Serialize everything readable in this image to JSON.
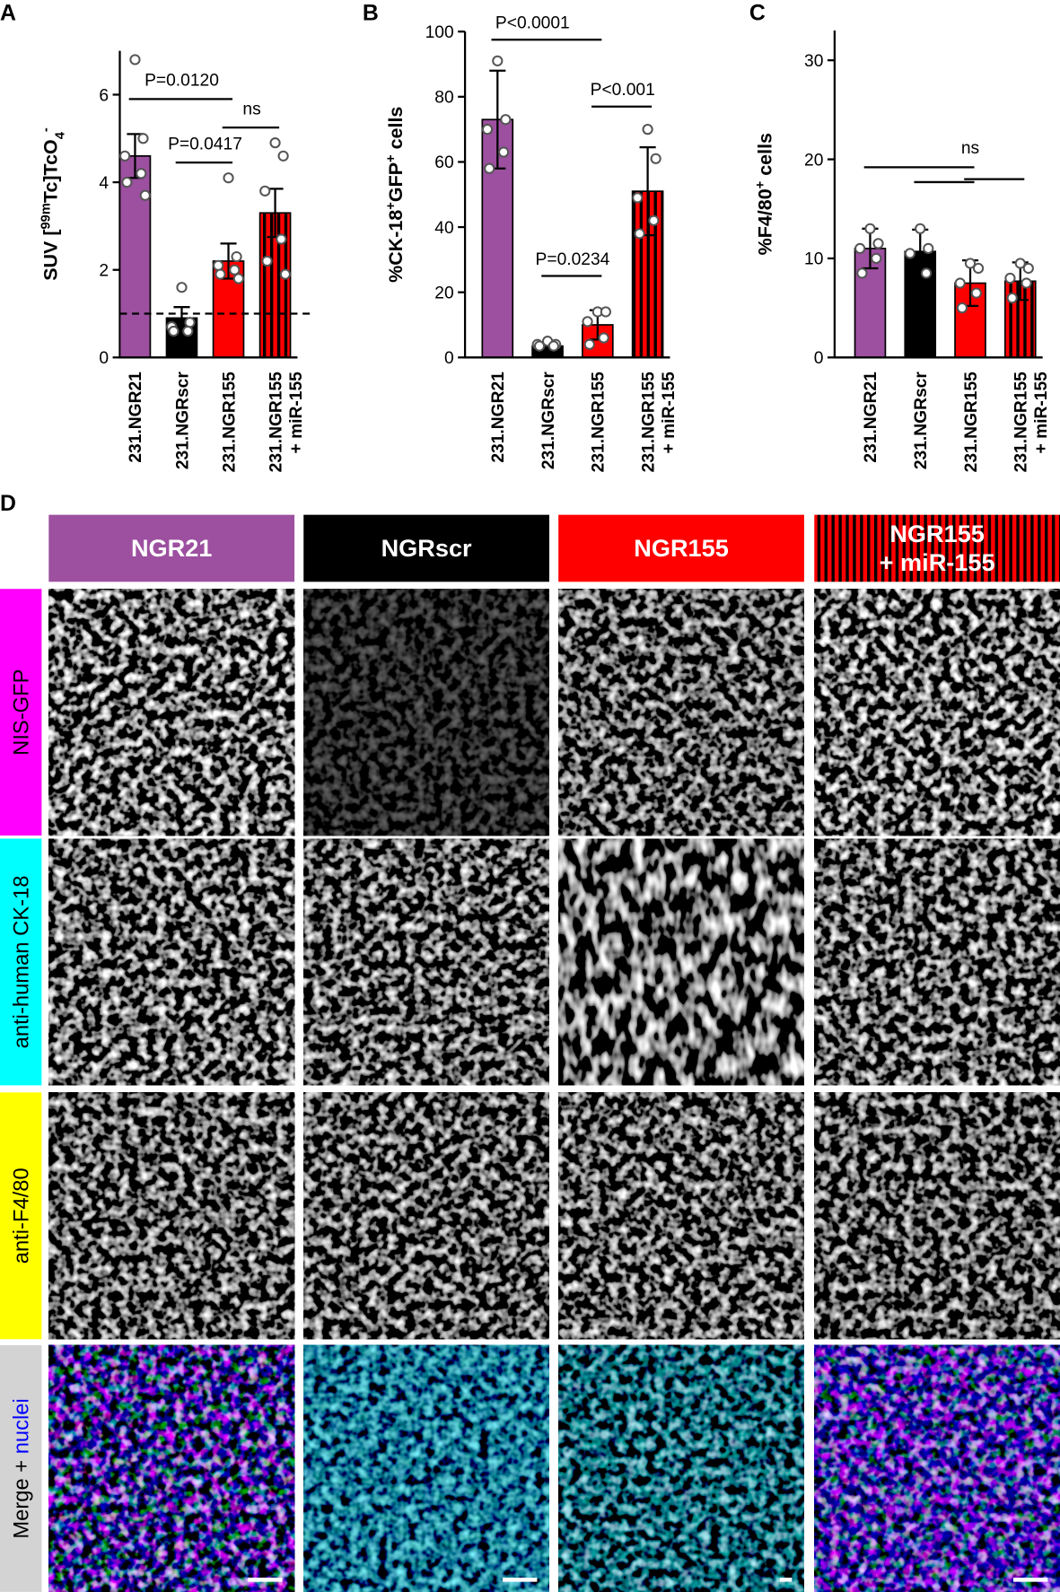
{
  "chart_data": [
    {
      "type": "bar",
      "panel": "A",
      "y_label": [
        "SUV [",
        "99m",
        "Tc]TcO",
        "4",
        "-"
      ],
      "categories": [
        [
          "231.NGR21"
        ],
        [
          "231.NGRscr"
        ],
        [
          "231.NGR155"
        ],
        [
          "231.NGR155",
          "+ miR-155"
        ]
      ],
      "values": [
        4.6,
        0.9,
        2.2,
        3.3
      ],
      "errors": [
        0.5,
        0.25,
        0.4,
        0.55
      ],
      "points": [
        [
          6.8,
          5.0,
          4.6,
          4.2,
          4.0,
          3.7
        ],
        [
          1.6,
          0.8,
          0.7,
          0.6,
          0.6
        ],
        [
          4.1,
          2.3,
          2.1,
          2.0,
          1.9,
          1.8
        ],
        [
          4.9,
          4.6,
          3.8,
          2.7,
          2.2,
          1.9
        ]
      ],
      "colors": [
        "#9c509f",
        "#000000",
        "#ff0000",
        "#ff0000"
      ],
      "hatched": [
        false,
        false,
        false,
        true
      ],
      "ylim": [
        0,
        7
      ],
      "yticks": [
        0,
        2,
        4,
        6
      ],
      "reference_line": 1,
      "brackets": [
        {
          "from": 0,
          "to": 2,
          "y": 5.9
        },
        {
          "from": 1,
          "to": 2,
          "y": 4.45
        },
        {
          "from": 2,
          "to": 3,
          "y": 5.25
        }
      ],
      "annotations": [
        {
          "text": "P=0.0120",
          "x": 1,
          "y": 6.2
        },
        {
          "text": "P=0.0417",
          "x": 1.5,
          "y": 4.75
        },
        {
          "text": "ns",
          "x": 2.5,
          "y": 5.55
        }
      ]
    },
    {
      "type": "bar",
      "panel": "B",
      "y_label": [
        "%CK-18",
        "+",
        "GFP",
        "+",
        " cells"
      ],
      "categories": [
        [
          "231.NGR21"
        ],
        [
          "231.NGRscr"
        ],
        [
          "231.NGR155"
        ],
        [
          "231.NGR155",
          "+ miR-155"
        ]
      ],
      "values": [
        73,
        3.5,
        10,
        51
      ],
      "errors": [
        15,
        1,
        4.5,
        13.5
      ],
      "points": [
        [
          91,
          73,
          70,
          63,
          58
        ],
        [
          5,
          4,
          4,
          3.5,
          3.5
        ],
        [
          14,
          14,
          11,
          6,
          4
        ],
        [
          70,
          61,
          49,
          42,
          38
        ]
      ],
      "colors": [
        "#9c509f",
        "#000000",
        "#ff0000",
        "#ff0000"
      ],
      "hatched": [
        false,
        false,
        false,
        true
      ],
      "ylim": [
        0,
        100
      ],
      "yticks": [
        0,
        20,
        40,
        60,
        80,
        100
      ],
      "brackets": [
        {
          "from": 0,
          "to": 2,
          "y": 97.5
        },
        {
          "from": 1,
          "to": 2,
          "y": 25
        },
        {
          "from": 2,
          "to": 3,
          "y": 77
        }
      ],
      "annotations": [
        {
          "text": "P<0.0001",
          "x": 0.7,
          "y": 101
        },
        {
          "text": "P=0.0234",
          "x": 1.5,
          "y": 28.5
        },
        {
          "text": "P<0.001",
          "x": 2.5,
          "y": 80.5
        }
      ]
    },
    {
      "type": "bar",
      "panel": "C",
      "y_label": [
        "%F4/80",
        "+",
        " cells"
      ],
      "categories": [
        [
          "231.NGR21"
        ],
        [
          "231.NGRscr"
        ],
        [
          "231.NGR155"
        ],
        [
          "231.NGR155",
          "+ miR-155"
        ]
      ],
      "values": [
        11,
        10.7,
        7.5,
        7.7
      ],
      "errors": [
        2,
        2.2,
        2.3,
        1.9
      ],
      "points": [
        [
          13,
          11.5,
          11,
          10,
          8.5
        ],
        [
          13,
          11,
          10.5,
          8.5
        ],
        [
          9.5,
          9,
          7.5,
          6.5,
          5
        ],
        [
          9.5,
          9,
          8,
          7.5,
          6
        ]
      ],
      "colors": [
        "#9c509f",
        "#000000",
        "#ff0000",
        "#ff0000"
      ],
      "hatched": [
        false,
        false,
        false,
        true
      ],
      "ylim": [
        0,
        33
      ],
      "yticks": [
        0,
        10,
        20,
        30
      ],
      "brackets": [
        {
          "from": 0,
          "to": 2,
          "y": 19.2
        },
        {
          "from": 1,
          "to": 2,
          "y": 17.7
        },
        {
          "from": 2,
          "to": 3,
          "y": 18
        }
      ],
      "annotations": [
        {
          "text": "ns",
          "x": 2,
          "y": 20.6
        }
      ]
    }
  ],
  "panel_d": {
    "label": "D",
    "columns": [
      {
        "label": [
          "NGR21"
        ],
        "color": "#9c509f"
      },
      {
        "label": [
          "NGRscr"
        ],
        "color": "#000000"
      },
      {
        "label": [
          "NGR155"
        ],
        "color": "#ff0000"
      },
      {
        "label": [
          "NGR155",
          "+ miR-155"
        ],
        "color": "#ff0000",
        "hatched": true
      }
    ],
    "rows": [
      {
        "label": [
          "NIS-GFP"
        ],
        "color": "#ff00ff"
      },
      {
        "label": [
          "anti-human CK-18"
        ],
        "color": "#00ffff"
      },
      {
        "label": [
          "anti-F4/80"
        ],
        "color": "#ffff00"
      },
      {
        "label": [
          "Merge + ",
          "nuclei"
        ],
        "color": "#d3d3d3"
      }
    ]
  }
}
